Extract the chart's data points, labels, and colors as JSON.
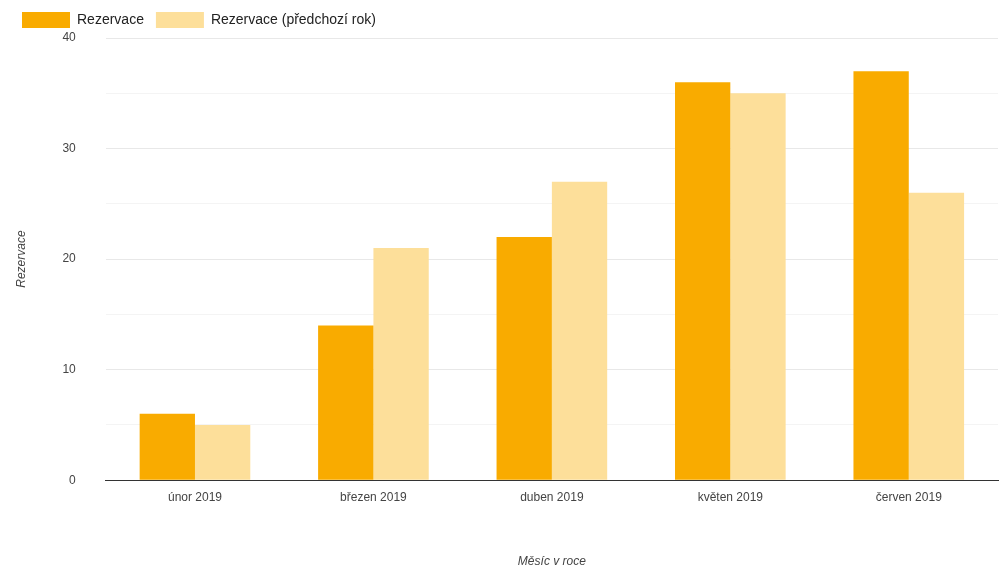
{
  "chart_data": {
    "type": "bar",
    "xlabel": "Měsíc v roce",
    "ylabel": "Rezervace",
    "categories": [
      "únor 2019",
      "březen 2019",
      "duben 2019",
      "květen 2019",
      "červen 2019"
    ],
    "series": [
      {
        "name": "Rezervace",
        "color": "#f9ab00",
        "values": [
          6,
          14,
          22,
          36,
          37
        ]
      },
      {
        "name": "Rezervace (předchozí rok)",
        "color": "#fddf9a",
        "values": [
          5,
          21,
          27,
          35,
          26
        ]
      }
    ],
    "ylim": [
      0,
      40
    ],
    "yticks": [
      0,
      {
        "value": 5,
        "label": null
      },
      10,
      {
        "value": 15,
        "label": null
      },
      20,
      {
        "value": 25,
        "label": null
      },
      30,
      {
        "value": 35,
        "label": null
      },
      40
    ],
    "grid": "y",
    "legend": "top left"
  }
}
